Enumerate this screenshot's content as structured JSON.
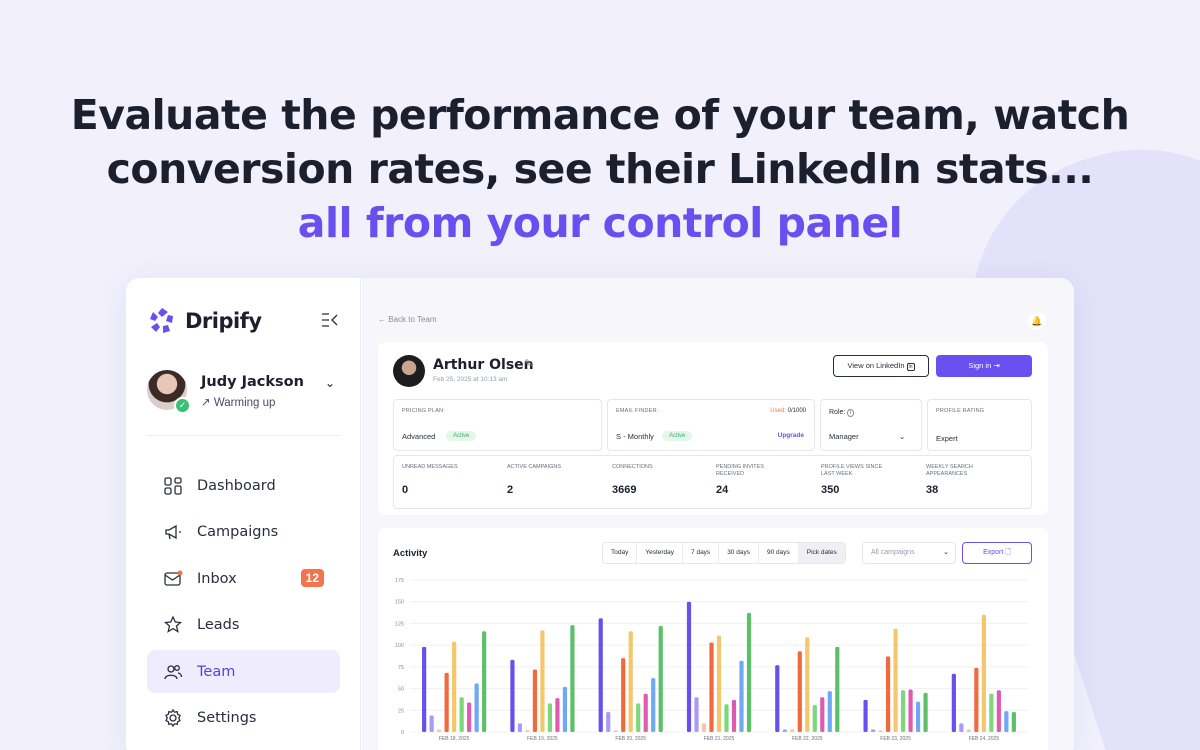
{
  "hero": {
    "line1": "Evaluate the performance of your team, watch",
    "line2": "conversion rates, see their LinkedIn stats...",
    "line3": "all from your control panel"
  },
  "app": {
    "brand": "Dripify",
    "user": {
      "name": "Judy Jackson",
      "status": "Warming up"
    },
    "nav": [
      {
        "label": "Dashboard",
        "icon": "dashboard-icon"
      },
      {
        "label": "Campaigns",
        "icon": "megaphone-icon"
      },
      {
        "label": "Inbox",
        "icon": "mail-icon",
        "badge": "12"
      },
      {
        "label": "Leads",
        "icon": "star-icon"
      },
      {
        "label": "Team",
        "icon": "team-icon",
        "active": true
      },
      {
        "label": "Settings",
        "icon": "gear-icon"
      }
    ]
  },
  "main": {
    "back_label": "Back to Team",
    "profile": {
      "name": "Arthur Olsen",
      "date": "Feb 25, 2025 at 10:13 am",
      "linkedin_button": "View on LinkedIn",
      "signin_button": "Sign in"
    },
    "pricing": {
      "label": "PRICING PLAN:",
      "value": "Advanced",
      "status": "Active"
    },
    "email_finder": {
      "label": "EMAIL FINDER:",
      "used_label": "Used:",
      "used": "0",
      "limit": "/1000",
      "value": "S - Monthly",
      "status": "Active",
      "upgrade": "Upgrade"
    },
    "role": {
      "label": "Role:",
      "value": "Manager"
    },
    "rating": {
      "label": "PROFILE RATING",
      "value": "Expert"
    },
    "stats": [
      {
        "label": "UNREAD MESSAGES",
        "value": "0"
      },
      {
        "label": "ACTIVE CAMPAIGNS",
        "value": "2"
      },
      {
        "label": "CONNECTIONS",
        "value": "3669"
      },
      {
        "label": "PENDING INVITES RECEIVED",
        "value": "24"
      },
      {
        "label": "PROFILE VIEWS SINCE LAST WEEK",
        "value": "350"
      },
      {
        "label": "WEEKLY SEARCH APPEARANCES",
        "value": "38"
      }
    ],
    "activity": {
      "title": "Activity",
      "ranges": [
        "Today",
        "Yesterday",
        "7 days",
        "30 days",
        "90 days",
        "Pick dates"
      ],
      "campaign_placeholder": "All campaigns",
      "export_label": "Export"
    }
  },
  "chart_data": {
    "type": "bar",
    "ylim": [
      0,
      175
    ],
    "yticks": [
      0,
      25,
      50,
      75,
      100,
      125,
      150,
      175
    ],
    "categories": [
      "FEB 18, 2025",
      "FEB 19, 2025",
      "FEB 20, 2025",
      "FEB 21, 2025",
      "FEB 22, 2025",
      "FEB 23, 2025",
      "FEB 24, 2025"
    ],
    "series": [
      {
        "color": "#6a4ff0",
        "values": [
          98,
          83,
          131,
          150,
          77,
          37,
          67
        ]
      },
      {
        "color": "#a89af5",
        "values": [
          19,
          10,
          23,
          40,
          3,
          3,
          10
        ]
      },
      {
        "color": "#f0c7a8",
        "values": [
          3,
          2,
          2,
          10,
          3,
          2,
          3
        ]
      },
      {
        "color": "#f06a3c",
        "values": [
          68,
          72,
          85,
          103,
          93,
          87,
          74
        ]
      },
      {
        "color": "#f5c76c",
        "values": [
          104,
          117,
          116,
          111,
          109,
          119,
          135
        ]
      },
      {
        "color": "#7dd77b",
        "values": [
          40,
          33,
          33,
          32,
          31,
          48,
          44
        ]
      },
      {
        "color": "#e05bb0",
        "values": [
          34,
          39,
          44,
          37,
          40,
          49,
          48
        ]
      },
      {
        "color": "#6fa8f5",
        "values": [
          56,
          52,
          62,
          82,
          47,
          35,
          24
        ]
      },
      {
        "color": "#5cc068",
        "values": [
          116,
          123,
          122,
          137,
          98,
          45,
          23
        ]
      }
    ]
  }
}
